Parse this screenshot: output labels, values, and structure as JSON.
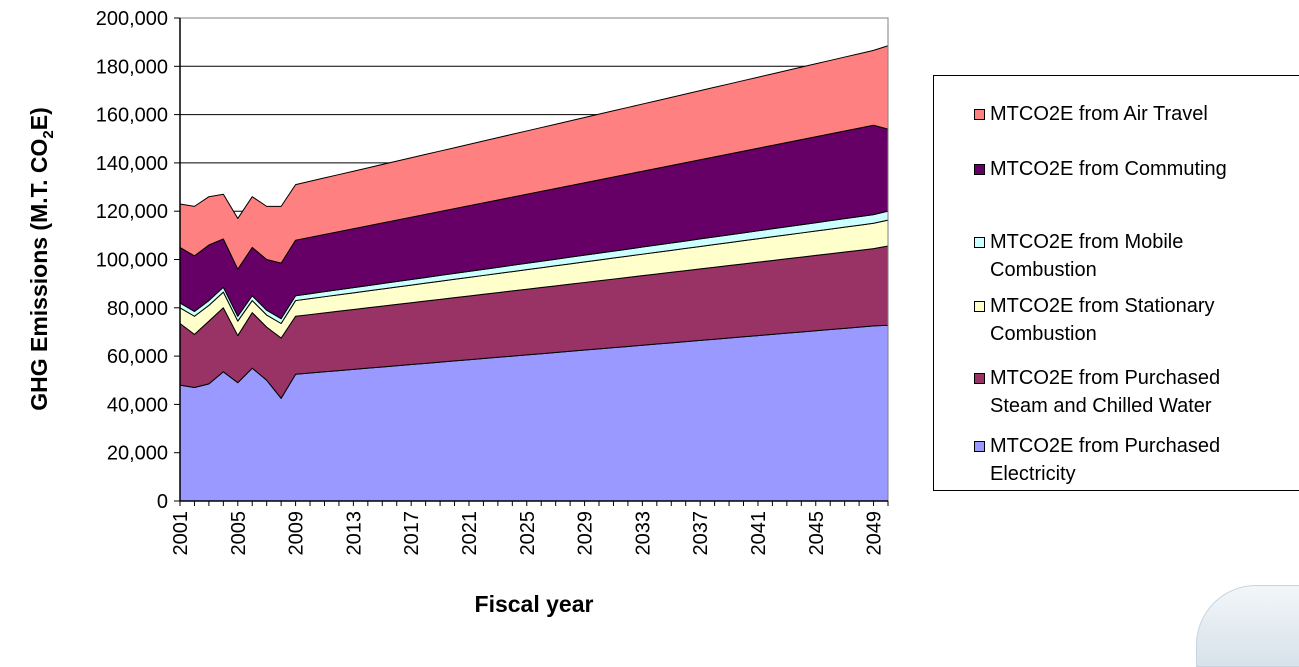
{
  "chart_data": {
    "type": "area",
    "stacked": true,
    "xlabel": "Fiscal year",
    "ylabel": "GHG Emissions (M.T. CO2E)",
    "ylabel_parts": {
      "main": "GHG Emissions (M.T. CO",
      "sub": "2",
      "end": "E)"
    },
    "ylim": [
      0,
      200000
    ],
    "yticks": [
      0,
      20000,
      40000,
      60000,
      80000,
      100000,
      120000,
      140000,
      160000,
      180000,
      200000
    ],
    "ytick_labels": [
      "0",
      "20,000",
      "40,000",
      "60,000",
      "80,000",
      "100,000",
      "120,000",
      "140,000",
      "160,000",
      "180,000",
      "200,000"
    ],
    "x_start": 2001,
    "x_end": 2050,
    "xtick_labels": [
      "2001",
      "2005",
      "2009",
      "2013",
      "2017",
      "2021",
      "2025",
      "2029",
      "2033",
      "2037",
      "2041",
      "2045",
      "2049"
    ],
    "grid": "horizontal",
    "legend_position": "right",
    "series": [
      {
        "name": "MTCO2E from Purchased Electricity",
        "color": "#9999ff",
        "values": [
          48000,
          47000,
          48500,
          53500,
          49000,
          55000,
          50000,
          42500,
          52500,
          53000,
          53500,
          54000,
          54500,
          55000,
          55500,
          56000,
          56500,
          57000,
          57500,
          58000,
          58500,
          59000,
          59500,
          60000,
          60500,
          61000,
          61500,
          62000,
          62500,
          63000,
          63500,
          64000,
          64500,
          65000,
          65500,
          66000,
          66500,
          67000,
          67500,
          68000,
          68500,
          69000,
          69500,
          70000,
          70500,
          71000,
          71500,
          72000,
          72500,
          72800
        ]
      },
      {
        "name": "MTCO2E from Purchased Steam and Chilled Water",
        "color": "#993366",
        "values": [
          25500,
          22000,
          26000,
          26500,
          19500,
          23000,
          22000,
          25000,
          24000,
          24200,
          24400,
          24600,
          24800,
          25000,
          25200,
          25400,
          25600,
          25800,
          26000,
          26200,
          26400,
          26600,
          26800,
          27000,
          27200,
          27400,
          27600,
          27800,
          28000,
          28200,
          28400,
          28600,
          28800,
          29000,
          29200,
          29400,
          29600,
          29800,
          30000,
          30200,
          30400,
          30600,
          30800,
          31000,
          31200,
          31400,
          31600,
          31800,
          32000,
          32800
        ]
      },
      {
        "name": "MTCO2E from Stationary Combustion",
        "color": "#ffffcc",
        "values": [
          6500,
          7500,
          6500,
          6500,
          6000,
          5000,
          5000,
          6000,
          6500,
          6600,
          6700,
          6800,
          6900,
          7000,
          7100,
          7200,
          7300,
          7400,
          7500,
          7600,
          7700,
          7800,
          7900,
          8000,
          8100,
          8200,
          8300,
          8400,
          8500,
          8600,
          8700,
          8800,
          8900,
          9000,
          9100,
          9200,
          9300,
          9400,
          9500,
          9600,
          9700,
          9800,
          9900,
          10000,
          10100,
          10200,
          10300,
          10400,
          10500,
          10700
        ]
      },
      {
        "name": "MTCO2E from Mobile Combustion",
        "color": "#ccffff",
        "values": [
          2000,
          2000,
          2000,
          2000,
          2000,
          2000,
          2000,
          2000,
          2000,
          2040,
          2080,
          2120,
          2160,
          2200,
          2240,
          2280,
          2320,
          2360,
          2400,
          2440,
          2480,
          2520,
          2560,
          2600,
          2640,
          2680,
          2720,
          2760,
          2800,
          2840,
          2880,
          2920,
          2960,
          3000,
          3040,
          3080,
          3120,
          3160,
          3200,
          3240,
          3280,
          3320,
          3360,
          3400,
          3440,
          3480,
          3520,
          3560,
          3600,
          3700
        ]
      },
      {
        "name": "MTCO2E from Commuting",
        "color": "#660066",
        "values": [
          23000,
          23000,
          23000,
          20000,
          19500,
          20000,
          21000,
          23000,
          23000,
          23350,
          23700,
          24050,
          24400,
          24750,
          25100,
          25450,
          25800,
          26150,
          26500,
          26850,
          27200,
          27550,
          27900,
          28250,
          28600,
          28950,
          29300,
          29650,
          30000,
          30350,
          30700,
          31050,
          31400,
          31750,
          32100,
          32450,
          32800,
          33150,
          33500,
          33850,
          34200,
          34550,
          34900,
          35250,
          35600,
          35950,
          36300,
          36650,
          37000,
          34000
        ]
      },
      {
        "name": "MTCO2E from Air Travel",
        "color": "#ff8080",
        "values": [
          18000,
          20500,
          20000,
          18500,
          21000,
          21000,
          22000,
          23500,
          23000,
          23200,
          23400,
          23600,
          23800,
          24000,
          24200,
          24400,
          24600,
          24800,
          25000,
          25200,
          25400,
          25600,
          25800,
          26000,
          26200,
          26400,
          26600,
          26800,
          27000,
          27200,
          27400,
          27600,
          27800,
          28000,
          28200,
          28400,
          28600,
          28800,
          29000,
          29200,
          29400,
          29600,
          29800,
          30000,
          30200,
          30400,
          30600,
          30800,
          31000,
          34500
        ]
      }
    ],
    "legend_order": [
      "MTCO2E from Air Travel",
      "MTCO2E from Commuting",
      "MTCO2E from Mobile Combustion",
      "MTCO2E from Stationary Combustion",
      "MTCO2E from Purchased Steam and Chilled Water",
      "MTCO2E from Purchased Electricity"
    ],
    "legend_lines": [
      [
        "MTCO2E from Air Travel"
      ],
      [
        "MTCO2E from Commuting"
      ],
      [
        "MTCO2E from Mobile",
        "Combustion"
      ],
      [
        "MTCO2E from Stationary",
        "Combustion"
      ],
      [
        "MTCO2E from Purchased",
        "Steam and Chilled Water"
      ],
      [
        "MTCO2E from Purchased",
        "Electricity"
      ]
    ]
  }
}
